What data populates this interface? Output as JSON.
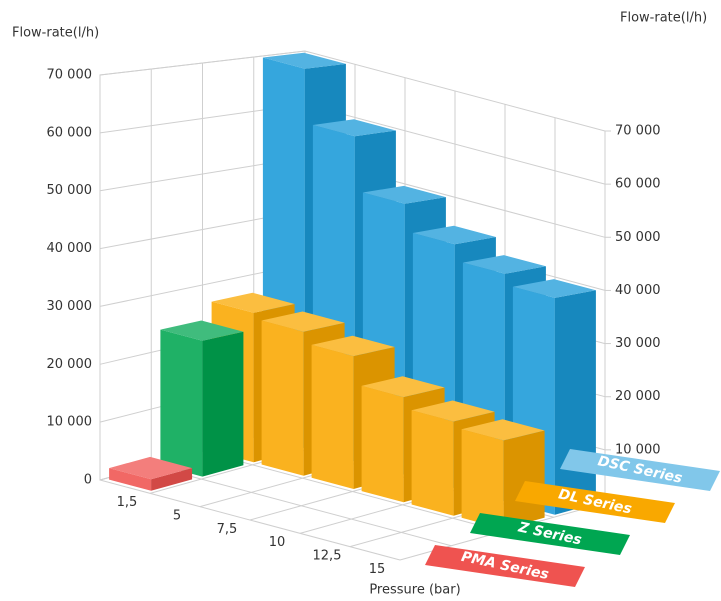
{
  "chart_data": {
    "type": "bar3d",
    "ylabel": "Flow-rate(l/h)",
    "y2label": "Flow-rate(l/h)",
    "xlabel": "Pressure (bar)",
    "categories": [
      "1,5",
      "5",
      "7,5",
      "10",
      "12,5",
      "15"
    ],
    "series": [
      {
        "name": "PMA Series",
        "color": "#ef5350",
        "values": [
          2000,
          null,
          null,
          null,
          null,
          null
        ]
      },
      {
        "name": "Z Series",
        "color": "#00a651",
        "values": [
          24000,
          null,
          null,
          null,
          null,
          null
        ]
      },
      {
        "name": "DL Series",
        "color": "#f9a800",
        "values": [
          27000,
          26000,
          24000,
          19000,
          17000,
          16000
        ]
      },
      {
        "name": "DSC Series",
        "color": "#1a9ad8",
        "values": [
          70000,
          60000,
          50000,
          45000,
          42000,
          40000
        ]
      }
    ],
    "ylim": [
      0,
      70000
    ],
    "yticks": [
      0,
      {
        "value": 10000,
        "label": "10 000"
      },
      {
        "value": 20000,
        "label": "20 000"
      },
      {
        "value": 30000,
        "label": "30 000"
      },
      {
        "value": 40000,
        "label": "40 000"
      },
      {
        "value": 50000,
        "label": "50 000"
      },
      {
        "value": 60000,
        "label": "60 000"
      },
      {
        "value": 70000,
        "label": "70 000"
      }
    ],
    "y2lim": [
      0,
      70000
    ],
    "y2ticks": [
      0,
      {
        "value": 10000,
        "label": "10 000"
      },
      {
        "value": 20000,
        "label": "20 000"
      },
      {
        "value": 30000,
        "label": "30 000"
      },
      {
        "value": 40000,
        "label": "40 000"
      },
      {
        "value": 50000,
        "label": "50 000"
      },
      {
        "value": 60000,
        "label": "60 000"
      },
      {
        "value": 70000,
        "label": "70 000"
      }
    ],
    "grid": true
  }
}
